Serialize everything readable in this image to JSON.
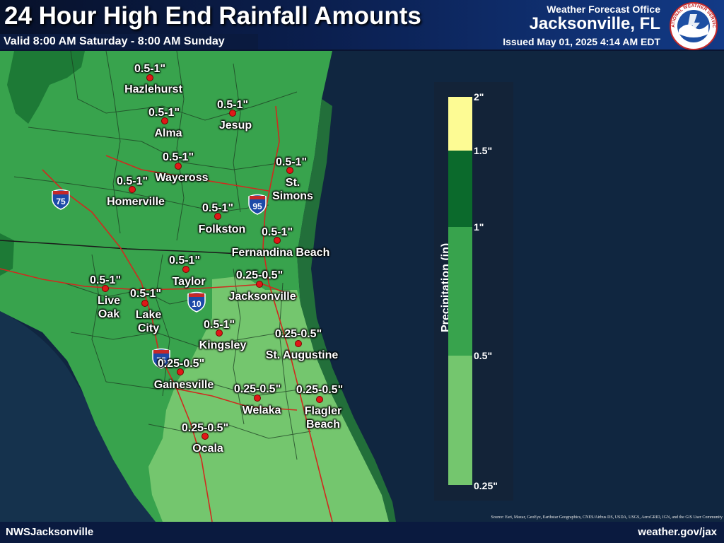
{
  "header": {
    "title": "24 Hour High End Rainfall Amounts",
    "valid": "Valid 8:00 AM Saturday - 8:00 AM Sunday",
    "office_label": "Weather Forecast Office",
    "office_city": "Jacksonville, FL",
    "issued": "Issued May 01, 2025 4:14 AM EDT",
    "logo_text": "NATIONAL WEATHER SERVICE"
  },
  "legend": {
    "title": "Precipitation (in)",
    "ticks": [
      "2\"",
      "1.5\"",
      "1\"",
      "0.5\"",
      "0.25\""
    ],
    "bins": [
      {
        "range": "1.5-2\"",
        "color": "#fdfb94"
      },
      {
        "range": "1-1.5\"",
        "color": "#0b6a2c"
      },
      {
        "range": "0.5-1\"",
        "color": "#38a34d"
      },
      {
        "range": "0.25-0.5\"",
        "color": "#74c66e"
      }
    ]
  },
  "cities": [
    {
      "name": "Hazlehurst",
      "value": "0.5-1\""
    },
    {
      "name": "Alma",
      "value": "0.5-1\""
    },
    {
      "name": "Jesup",
      "value": "0.5-1\""
    },
    {
      "name": "Waycross",
      "value": "0.5-1\""
    },
    {
      "name": "St. Simons",
      "value": "0.5-1\""
    },
    {
      "name": "Homerville",
      "value": "0.5-1\""
    },
    {
      "name": "Folkston",
      "value": "0.5-1\""
    },
    {
      "name": "Fernandina Beach",
      "value": "0.5-1\""
    },
    {
      "name": "Taylor",
      "value": "0.5-1\""
    },
    {
      "name": "Jacksonville",
      "value": "0.25-0.5\""
    },
    {
      "name": "Live Oak",
      "value": "0.5-1\""
    },
    {
      "name": "Lake City",
      "value": "0.5-1\""
    },
    {
      "name": "Kingsley",
      "value": "0.5-1\""
    },
    {
      "name": "St. Augustine",
      "value": "0.25-0.5\""
    },
    {
      "name": "Gainesville",
      "value": "0.25-0.5\""
    },
    {
      "name": "Welaka",
      "value": "0.25-0.5\""
    },
    {
      "name": "Flagler Beach",
      "value": "0.25-0.5\""
    },
    {
      "name": "Ocala",
      "value": "0.25-0.5\""
    }
  ],
  "interstates": [
    "75",
    "95",
    "10",
    "75"
  ],
  "footer": {
    "left": "NWSJacksonville",
    "right": "weather.gov/jax",
    "source": "Source: Esri, Maxar, GeoEye, Earthstar Geographics, CNES/Airbus DS, USDA, USGS, AeroGRID, IGN, and the GIS User Community"
  }
}
